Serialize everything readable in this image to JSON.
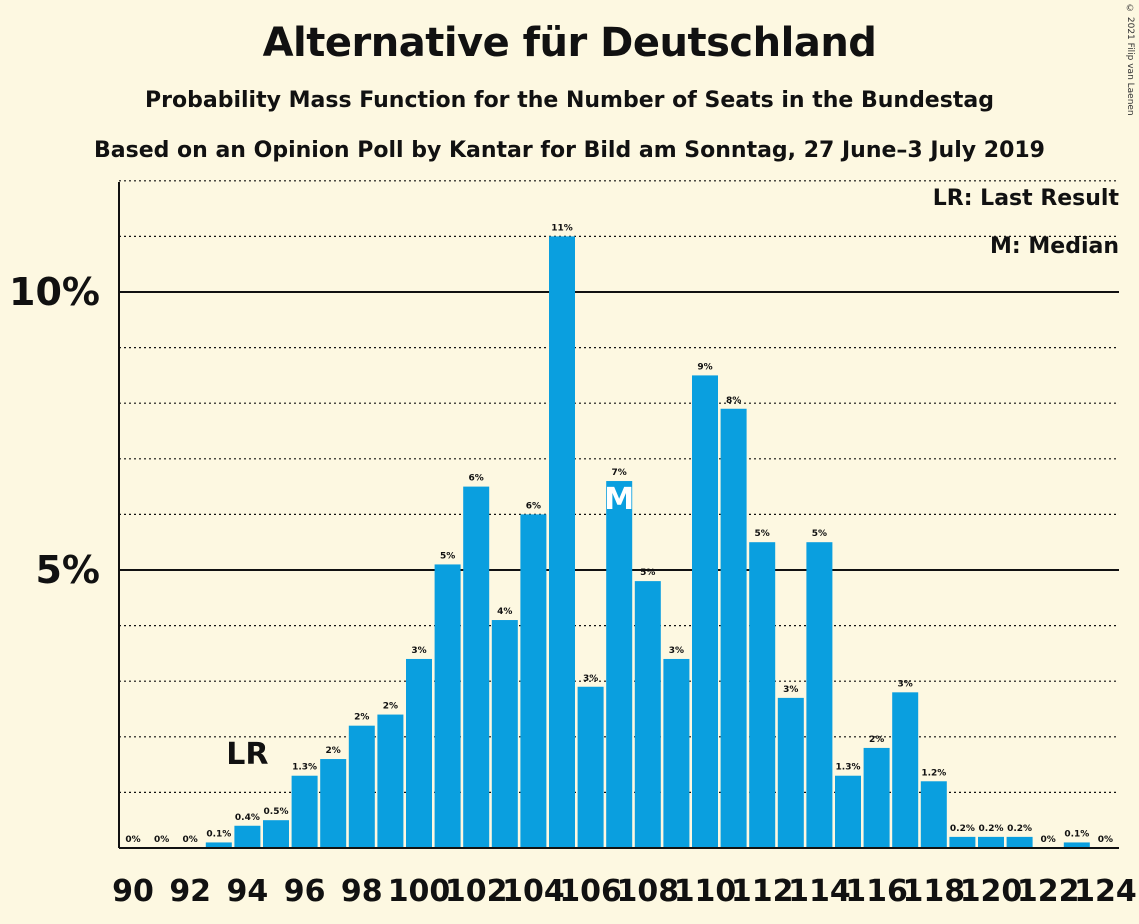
{
  "title": "Alternative für Deutschland",
  "subtitle": "Probability Mass Function for the Number of Seats in the Bundestag",
  "subtitle2": "Based on an Opinion Poll by Kantar for Bild am Sonntag, 27 June–3 July 2019",
  "copyright": "© 2021 Filip van Laenen",
  "legend": {
    "lr": "LR: Last Result",
    "m": "M: Median"
  },
  "colors": {
    "bar": "#0a9fdf",
    "background": "#fdf8e1",
    "text": "#111111"
  },
  "chart_data": {
    "type": "bar",
    "x": [
      90,
      91,
      92,
      93,
      94,
      95,
      96,
      97,
      98,
      99,
      100,
      101,
      102,
      103,
      104,
      105,
      106,
      107,
      108,
      109,
      110,
      111,
      112,
      113,
      114,
      115,
      116,
      117,
      118,
      119,
      120,
      121,
      122,
      123,
      124
    ],
    "values": [
      0,
      0,
      0,
      0.1,
      0.4,
      0.5,
      1.3,
      1.6,
      2.2,
      2.4,
      3.4,
      5.1,
      6.5,
      4.1,
      6.0,
      11.0,
      2.9,
      6.6,
      4.8,
      3.4,
      8.5,
      7.9,
      5.5,
      2.7,
      5.5,
      1.3,
      1.8,
      2.8,
      1.2,
      0.2,
      0.2,
      0.2,
      0,
      0.1,
      0
    ],
    "labels": [
      "0%",
      "0%",
      "0%",
      "0.1%",
      "0.4%",
      "0.5%",
      "1.3%",
      "2%",
      "2%",
      "2%",
      "3%",
      "5%",
      "6%",
      "4%",
      "6%",
      "11%",
      "3%",
      "7%",
      "5%",
      "3%",
      "9%",
      "8%",
      "5%",
      "3%",
      "5%",
      "1.3%",
      "2%",
      "3%",
      "1.2%",
      "0.2%",
      "0.2%",
      "0.2%",
      "0%",
      "0.1%",
      "0%"
    ],
    "xticks": [
      "90",
      "92",
      "94",
      "96",
      "98",
      "100",
      "102",
      "104",
      "106",
      "108",
      "110",
      "112",
      "114",
      "116",
      "118",
      "120",
      "122",
      "124"
    ],
    "yticks": [
      {
        "value": 5,
        "label": "5%"
      },
      {
        "value": 10,
        "label": "10%"
      }
    ],
    "ylim": [
      0,
      12
    ],
    "grid_dotted_step": 1,
    "last_result": {
      "x": 94,
      "label": "LR"
    },
    "median": {
      "x": 107,
      "label": "M"
    },
    "unit": "%"
  }
}
